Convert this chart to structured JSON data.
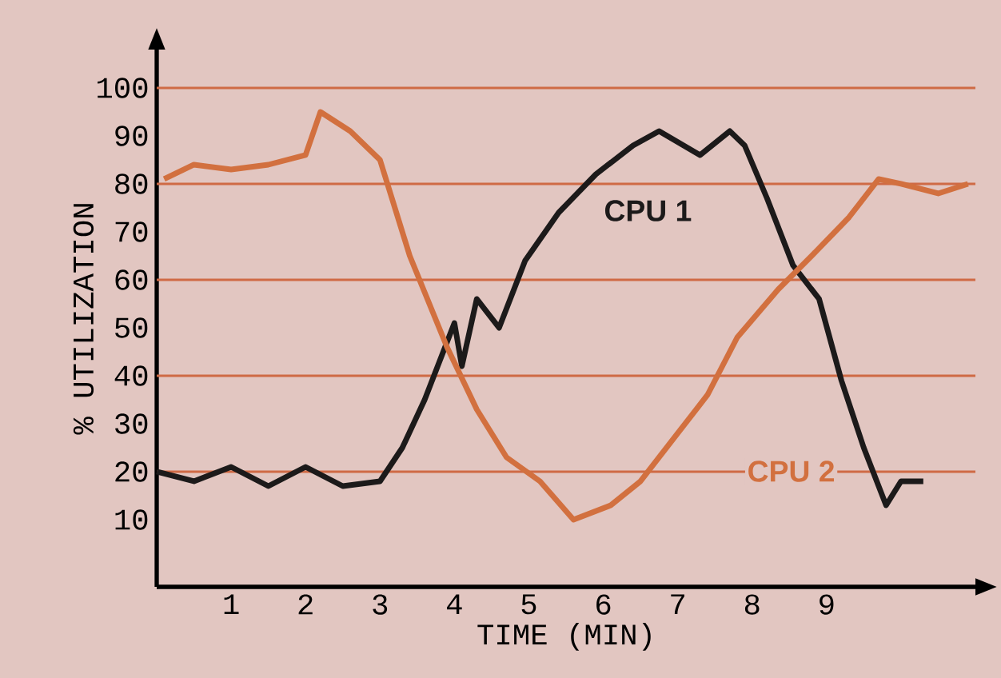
{
  "chart_data": {
    "type": "line",
    "xlabel": "TIME (MIN)",
    "ylabel": "% UTILIZATION",
    "xlim": [
      0,
      11
    ],
    "ylim": [
      -4,
      108
    ],
    "xticks": [
      1,
      2,
      3,
      4,
      5,
      6,
      7,
      8,
      9
    ],
    "yticks": [
      10,
      20,
      30,
      40,
      50,
      60,
      70,
      80,
      90,
      100
    ],
    "grid": false,
    "legend": false,
    "marker": "none",
    "line_style": "solid",
    "ref_lines": [
      {
        "axis": "y",
        "value": 20,
        "color": "#cf6a45"
      },
      {
        "axis": "y",
        "value": 40,
        "color": "#cf6a45"
      },
      {
        "axis": "y",
        "value": 60,
        "color": "#cf6a45"
      },
      {
        "axis": "y",
        "value": 80,
        "color": "#cf6a45"
      },
      {
        "axis": "y",
        "value": 100,
        "color": "#cf6a45"
      }
    ],
    "series": [
      {
        "name": "CPU 1",
        "color": "#1c1a1a",
        "x": [
          0,
          0.5,
          1,
          1.5,
          2,
          2.5,
          3,
          3.3,
          3.6,
          4.0,
          4.1,
          4.3,
          4.6,
          4.95,
          5.4,
          5.9,
          6.4,
          6.75,
          7.3,
          7.7,
          7.9,
          8.2,
          8.55,
          8.9,
          9.2,
          9.5,
          9.8,
          10.0,
          10.3
        ],
        "values": [
          20,
          18,
          21,
          17,
          21,
          17,
          18,
          25,
          35,
          51,
          42,
          56,
          50,
          64,
          74,
          82,
          88,
          91,
          86,
          91,
          88,
          77,
          63,
          56,
          39,
          25,
          13,
          18,
          18
        ]
      },
      {
        "name": "CPU 2",
        "color": "#d2703f",
        "x": [
          0.1,
          0.5,
          1,
          1.5,
          2,
          2.2,
          2.6,
          3.0,
          3.4,
          3.9,
          4.3,
          4.7,
          5.15,
          5.6,
          6.1,
          6.5,
          7.0,
          7.4,
          7.8,
          8.35,
          8.8,
          9.3,
          9.7,
          10.0,
          10.5,
          10.9
        ],
        "values": [
          81,
          84,
          83,
          84,
          86,
          95,
          91,
          85,
          65,
          46,
          33,
          23,
          18,
          10,
          13,
          18,
          28,
          36,
          48,
          58,
          65,
          73,
          81,
          80,
          78,
          80
        ]
      }
    ]
  }
}
